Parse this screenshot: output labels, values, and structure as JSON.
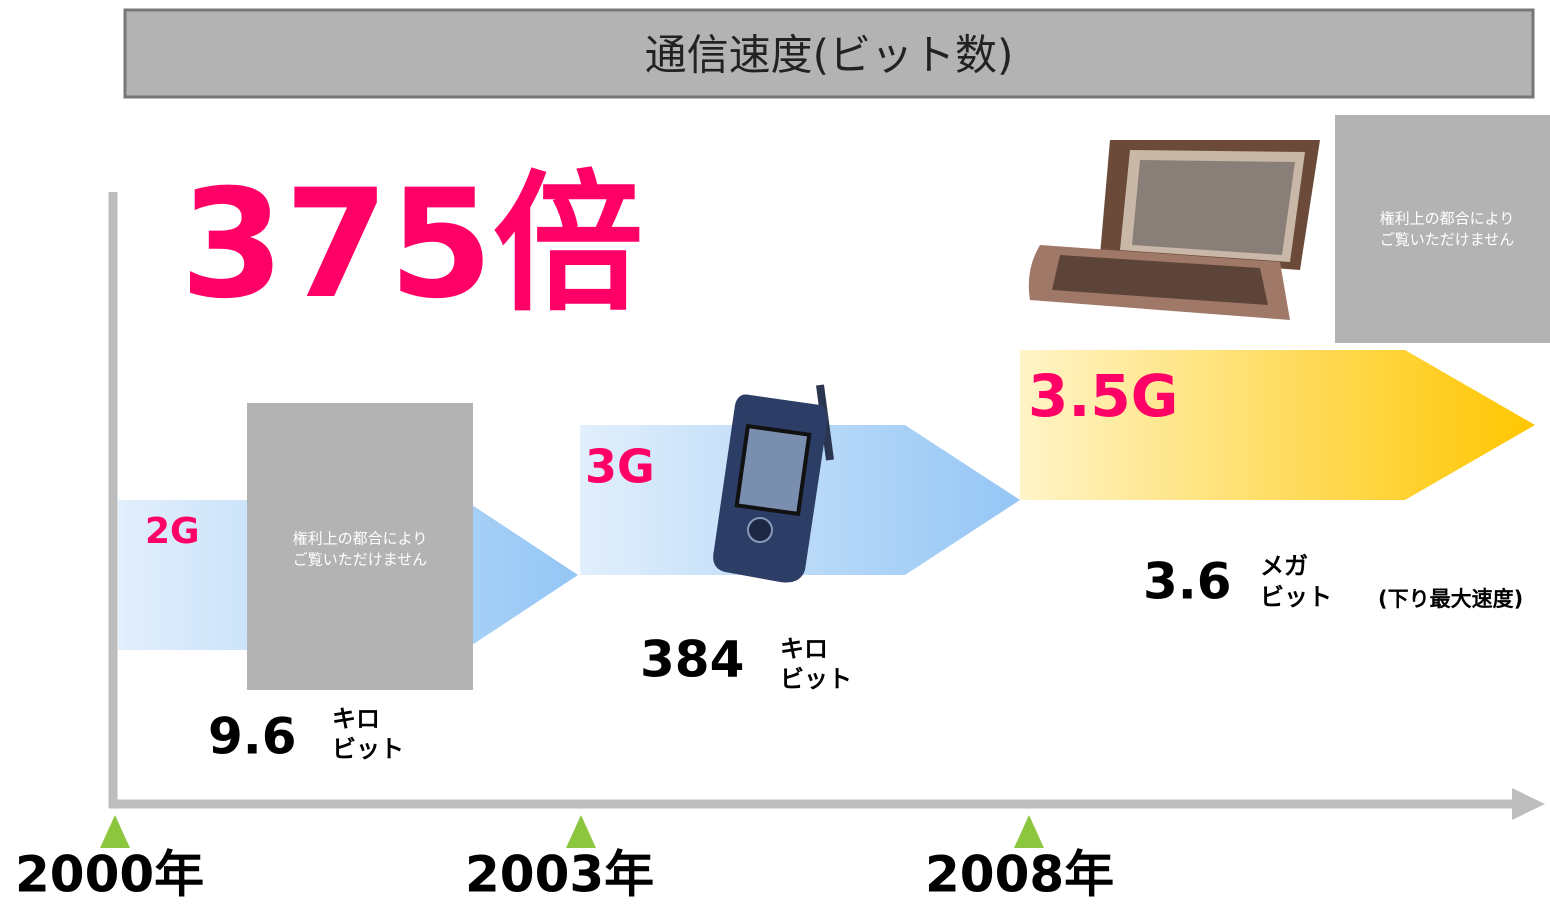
{
  "header": {
    "title": "通信速度(ビット数)"
  },
  "headline": "375倍",
  "generations": [
    {
      "label": "2G",
      "speed": "9.6",
      "unit_top": "キロ",
      "unit_bottom": "ビット"
    },
    {
      "label": "3G",
      "speed": "384",
      "unit_top": "キロ",
      "unit_bottom": "ビット"
    },
    {
      "label": "3.5G",
      "speed": "3.6",
      "unit_top": "メガ",
      "unit_bottom": "ビット",
      "note": "(下り最大速度)"
    }
  ],
  "years": [
    "2000年",
    "2003年",
    "2008年"
  ],
  "placeholder": [
    "権利上の都合により",
    "ご覧いただけません"
  ]
}
